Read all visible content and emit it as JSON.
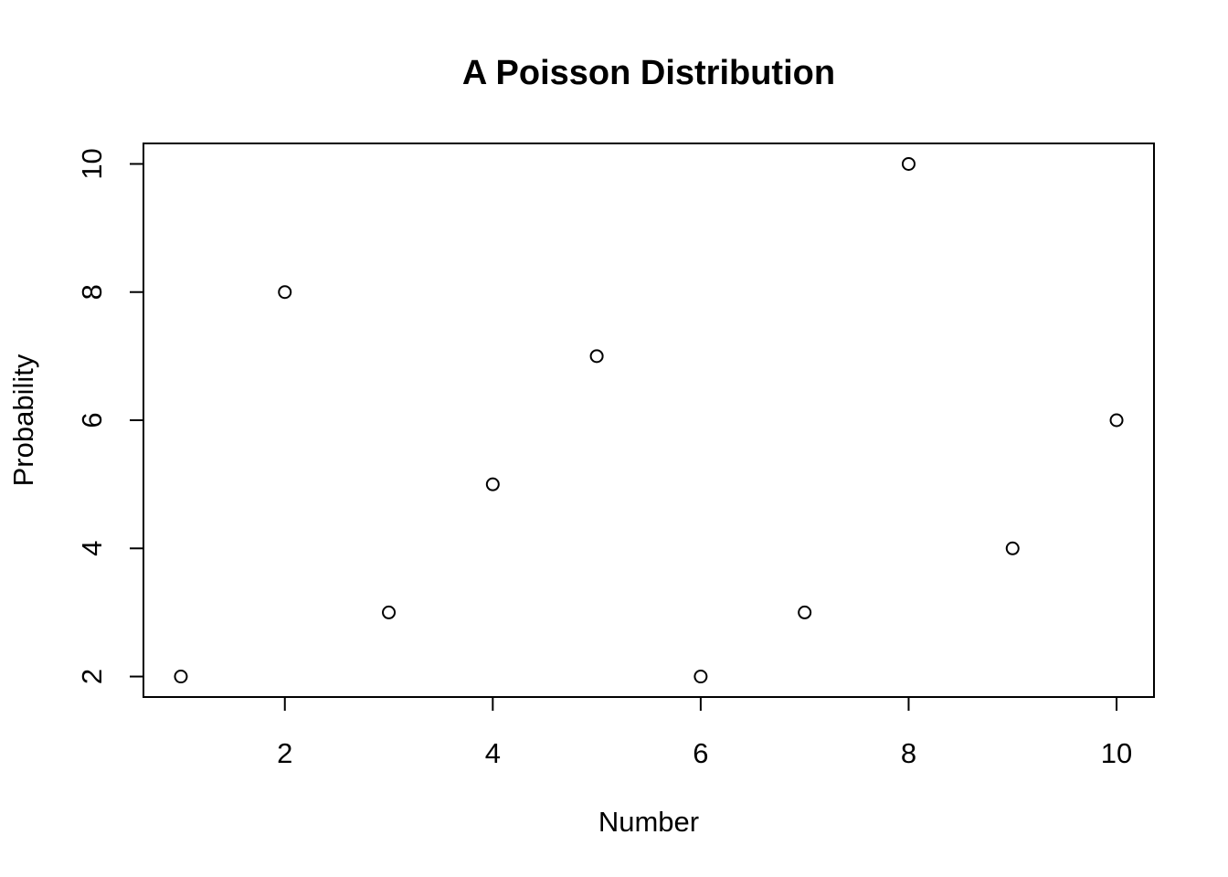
{
  "chart_data": {
    "type": "scatter",
    "title": "A Poisson Distribution",
    "xlabel": "Number",
    "ylabel": "Probability",
    "x": [
      1,
      2,
      3,
      4,
      5,
      6,
      7,
      8,
      9,
      10
    ],
    "y": [
      2,
      8,
      3,
      5,
      7,
      2,
      3,
      10,
      4,
      6
    ],
    "xlim": [
      0.64,
      10.36
    ],
    "ylim": [
      1.68,
      10.32
    ],
    "x_ticks": [
      2,
      4,
      6,
      8,
      10
    ],
    "y_ticks": [
      2,
      4,
      6,
      8,
      10
    ],
    "marker": "open-circle",
    "grid": false,
    "colors": {
      "foreground": "#000000",
      "background": "#ffffff"
    }
  }
}
